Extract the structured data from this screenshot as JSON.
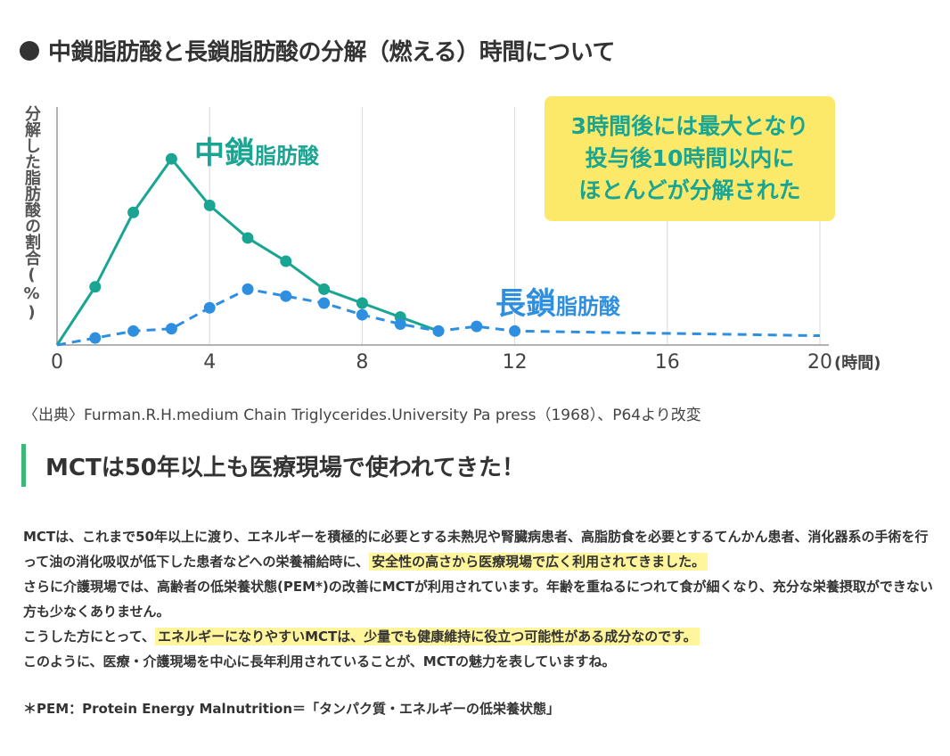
{
  "heading": "中鎖脂肪酸と長鎖脂肪酸の分解（燃える）時間について",
  "chart_data": {
    "type": "line",
    "ylabel": "分解した脂肪酸の割合(%)",
    "x_unit": "(時間)",
    "x_ticks": [
      0,
      4,
      8,
      12,
      16,
      20
    ],
    "xlim": [
      0,
      20
    ],
    "grid": "vertical",
    "series": [
      {
        "name_big": "中鎖",
        "name_small": "脂肪酸",
        "color": "#1aa593",
        "style": "solid",
        "points": [
          [
            0,
            0
          ],
          [
            1,
            25
          ],
          [
            2,
            57
          ],
          [
            3,
            80
          ],
          [
            4,
            60
          ],
          [
            5,
            46
          ],
          [
            6,
            36
          ],
          [
            7,
            24
          ],
          [
            8,
            18
          ],
          [
            9,
            12
          ],
          [
            10,
            6
          ]
        ]
      },
      {
        "name_big": "長鎖",
        "name_small": "脂肪酸",
        "color": "#2e8fe0",
        "style": "dashed",
        "points": [
          [
            0,
            0
          ],
          [
            1,
            3
          ],
          [
            2,
            6
          ],
          [
            3,
            7
          ],
          [
            4,
            16
          ],
          [
            5,
            24
          ],
          [
            6,
            21
          ],
          [
            7,
            18
          ],
          [
            8,
            13
          ],
          [
            9,
            9
          ],
          [
            10,
            6
          ],
          [
            11,
            8
          ],
          [
            12,
            6
          ],
          [
            20,
            4
          ]
        ],
        "unmarked_points": [
          [
            20,
            4
          ]
        ]
      }
    ],
    "callout": [
      "3時間後には最大となり",
      "投与後10時間以内に",
      "ほとんどが分解された"
    ]
  },
  "source": "〈出典〉Furman.R.H.medium Chain Triglycerides.University Pa press（1968）、P64より改変",
  "section_title": "MCTは50年以上も医療現場で使われてきた！",
  "paragraphs": [
    {
      "pre": "MCTは、これまで50年以上に渡り、エネルギーを積極的に必要とする未熟児や腎臓病患者、高脂肪食を必要とするてんかん患者、消化器系の手術を行って油の消化吸収が低下した患者などへの栄養補給時に、",
      "highlight": "安全性の高さから医療現場で広く利用されてきました。",
      "post": ""
    },
    {
      "pre": "さらに介護現場では、高齢者の低栄養状態(PEM*)の改善にMCTが利用されています。年齢を重ねるにつれて食が細くなり、充分な栄養摂取ができない方も少なくありません。",
      "highlight": "",
      "post": ""
    },
    {
      "pre": "こうした方にとって、",
      "highlight": "エネルギーになりやすいMCTは、少量でも健康維持に役立つ可能性がある成分なのです。",
      "post": ""
    },
    {
      "pre": "このように、医療・介護現場を中心に長年利用されていることが、MCTの魅力を表していますね。",
      "highlight": "",
      "post": ""
    }
  ],
  "footnote": "＊PEM：Protein Energy Malnutrition＝「タンパク質・エネルギーの低栄養状態」"
}
